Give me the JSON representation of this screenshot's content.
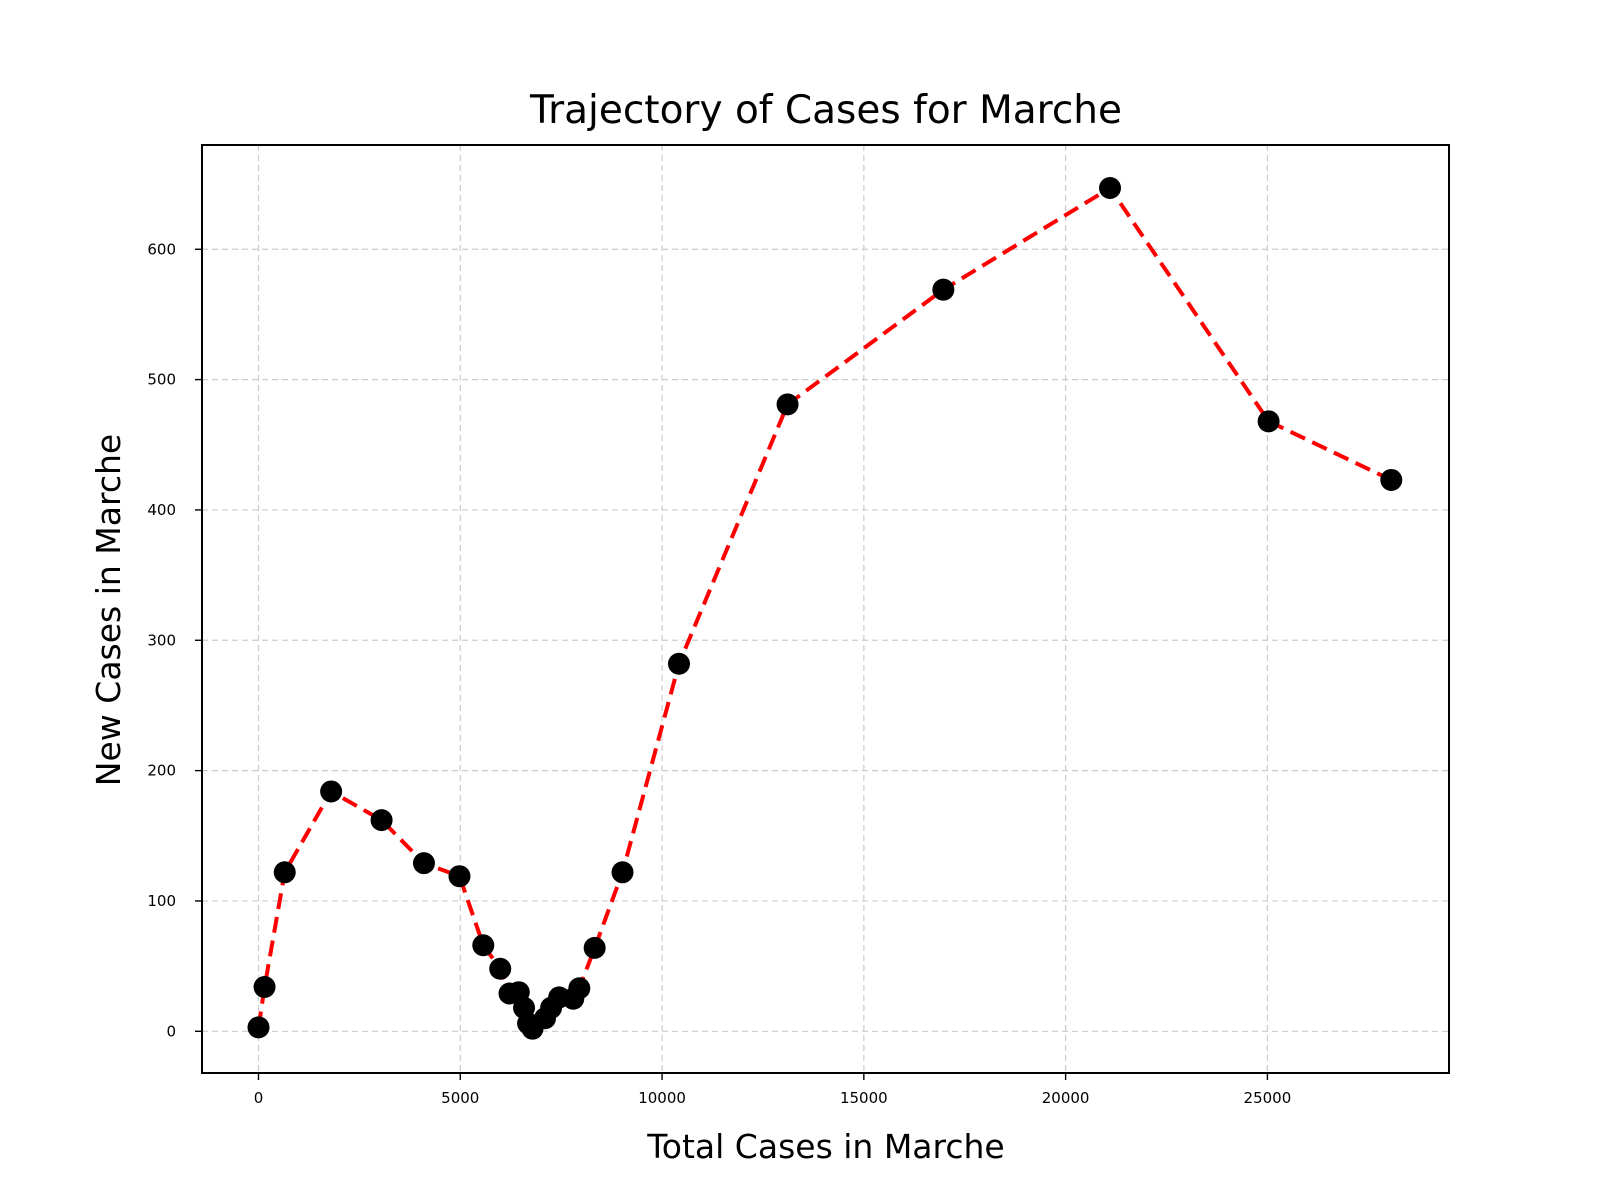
{
  "chart_data": {
    "type": "line",
    "title": "Trajectory of Cases for Marche",
    "xlabel": "Total Cases in Marche",
    "ylabel": "New Cases in Marche",
    "xlim": [
      -1400,
      29500
    ],
    "ylim": [
      -32,
      680
    ],
    "xticks": [
      0,
      5000,
      10000,
      15000,
      20000,
      25000
    ],
    "yticks": [
      0,
      100,
      200,
      300,
      400,
      500,
      600
    ],
    "grid": true,
    "line_color": "#ff0000",
    "marker_color": "#000000",
    "series": [
      {
        "x": [
          0,
          150,
          650,
          1800,
          3050,
          4100,
          4980,
          5570,
          5990,
          6220,
          6450,
          6580,
          6680,
          6790,
          7100,
          7250,
          7450,
          7800,
          7950,
          8330,
          9020,
          10420,
          13110,
          16970,
          21100,
          25030,
          28070
        ],
        "y": [
          3,
          34,
          122,
          184,
          162,
          129,
          119,
          66,
          48,
          29,
          30,
          18,
          6,
          2,
          10,
          18,
          26,
          25,
          33,
          64,
          122,
          282,
          481,
          569,
          647,
          468,
          423
        ]
      }
    ]
  }
}
